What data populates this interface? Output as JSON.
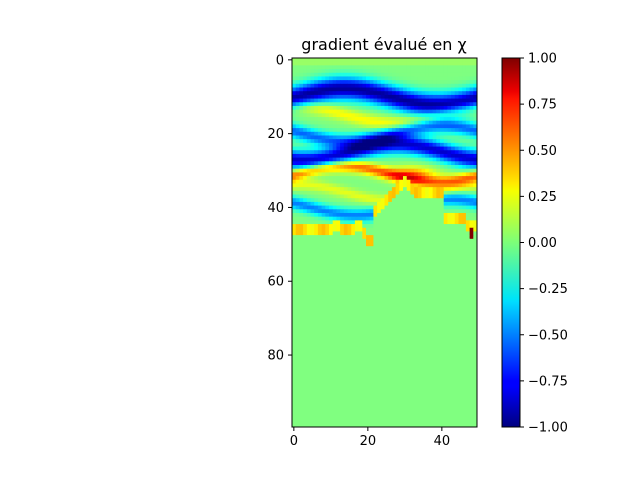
{
  "chart_data": {
    "type": "heatmap",
    "title": "gradient évalué en χ",
    "xlabel": "",
    "ylabel": "",
    "x_range": [
      -0.5,
      49.5
    ],
    "y_range": [
      99.5,
      -0.5
    ],
    "grid": false,
    "x_ticks": [
      0,
      20,
      40
    ],
    "y_ticks": [
      0,
      20,
      40,
      60,
      80
    ],
    "colormap": "jet",
    "colorbar": {
      "vmin": -1.0,
      "vmax": 1.0,
      "ticks": [
        "-1.00",
        "-0.75",
        "-0.50",
        "-0.25",
        "0.00",
        "0.25",
        "0.50",
        "0.75",
        "1.00"
      ]
    },
    "shape": [
      100,
      50
    ],
    "note": "",
    "field": {
      "bands": [
        {
          "y": 10,
          "amp": -0.95,
          "width": 3.0
        },
        {
          "y": 15,
          "amp": 0.25,
          "width": 1.8
        },
        {
          "y": 20,
          "amp": -0.55,
          "width": 2.0
        },
        {
          "y": 25,
          "amp": -0.85,
          "width": 2.5
        },
        {
          "y": 31,
          "amp": 0.55,
          "width": 1.6
        },
        {
          "y": 36,
          "amp": 0.2,
          "width": 1.5
        },
        {
          "y": 40,
          "amp": -0.5,
          "width": 1.8
        }
      ],
      "zero_region_start_row": 50,
      "hot_spot": {
        "row": 47,
        "col": 48,
        "value": 1.0
      }
    }
  }
}
